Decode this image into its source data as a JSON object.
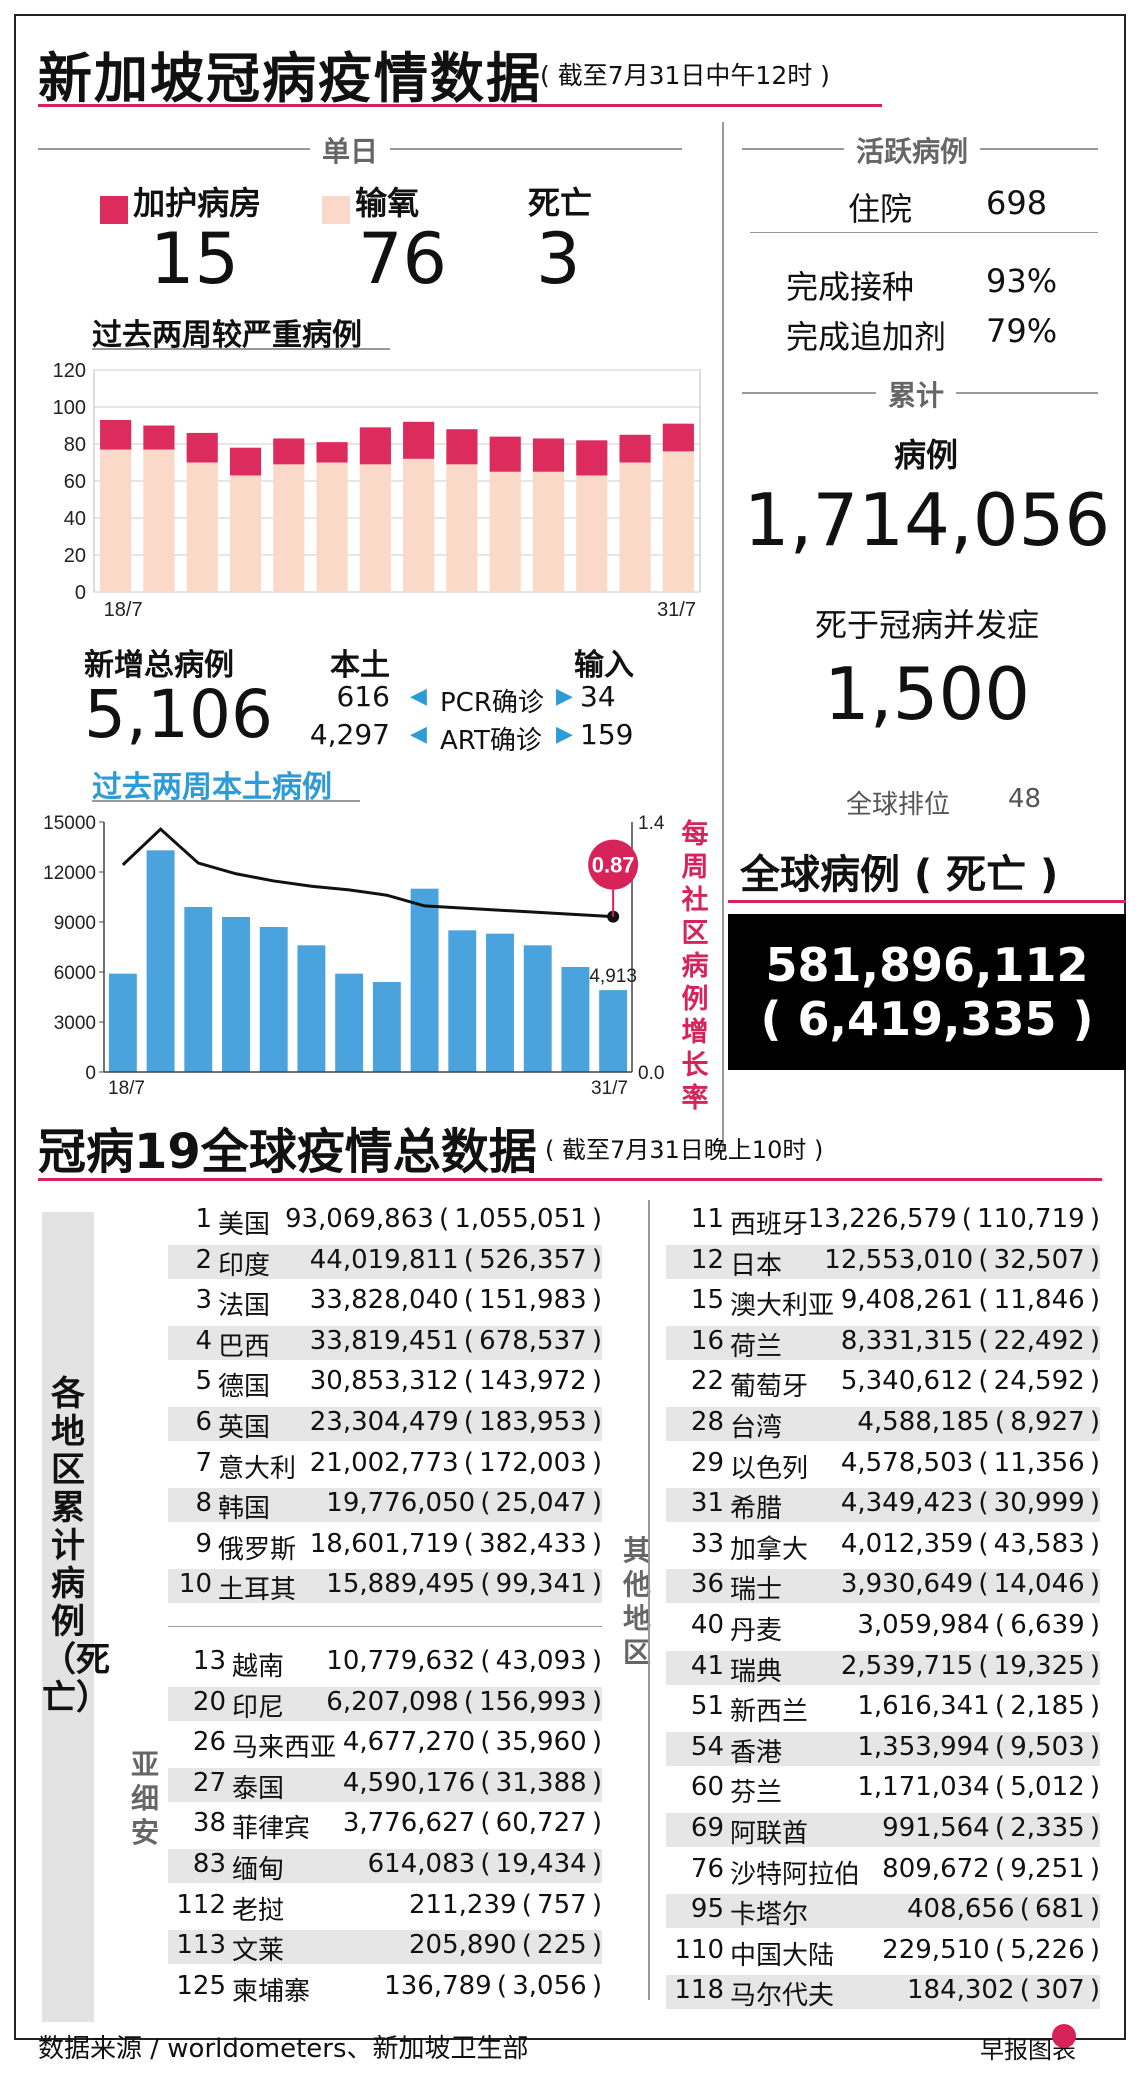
{
  "header": {
    "title": "新加坡冠病疫情数据",
    "subtitle": "( 截至7月31日中午12时 )"
  },
  "daily": {
    "section_label": "单日",
    "icu": {
      "label": "加护病房",
      "value": "15",
      "color": "#dc2c5e"
    },
    "oxygen": {
      "label": "输氧",
      "value": "76",
      "color": "#fbd9c8"
    },
    "deaths": {
      "label": "死亡",
      "value": "3"
    }
  },
  "severe_chart_title": "过去两周较严重病例",
  "new_cases": {
    "label": "新增总病例",
    "value": "5,106",
    "local_label": "本土",
    "imported_label": "输入",
    "pcr_local": "616",
    "pcr_label": "PCR确诊",
    "pcr_imported": "34",
    "art_local": "4,297",
    "art_label": "ART确诊",
    "art_imported": "159"
  },
  "local_chart_title": "过去两周本土病例",
  "right_panel": {
    "active_label": "活跃病例",
    "hospital_label": "住院",
    "hospital_value": "698",
    "vaccinated_label": "完成接种",
    "vaccinated_value": "93%",
    "booster_label": "完成追加剂",
    "booster_value": "79%",
    "cumulative_label": "累计",
    "cases_label": "病例",
    "cases_value": "1,714,056",
    "deaths_label": "死于冠病并发症",
    "deaths_value": "1,500",
    "rank_label": "全球排位",
    "rank_value": "48"
  },
  "global": {
    "label": "全球病例 ( 死亡 )",
    "cases": "581,896,112",
    "deaths": "( 6,419,335 )"
  },
  "section2": {
    "title": "冠病19全球疫情总数据",
    "subtitle": "( 截至7月31日晚上10时 )",
    "side_label": "各地区累计病例（死亡）",
    "asia_label": "亚细安",
    "others_label": "其他地区"
  },
  "top10": [
    {
      "rank": "1",
      "name": "美国",
      "value": "93,069,863",
      "deaths": "1,055,051"
    },
    {
      "rank": "2",
      "name": "印度",
      "value": "44,019,811",
      "deaths": "526,357"
    },
    {
      "rank": "3",
      "name": "法国",
      "value": "33,828,040",
      "deaths": "151,983"
    },
    {
      "rank": "4",
      "name": "巴西",
      "value": "33,819,451",
      "deaths": "678,537"
    },
    {
      "rank": "5",
      "name": "德国",
      "value": "30,853,312",
      "deaths": "143,972"
    },
    {
      "rank": "6",
      "name": "英国",
      "value": "23,304,479",
      "deaths": "183,953"
    },
    {
      "rank": "7",
      "name": "意大利",
      "value": "21,002,773",
      "deaths": "172,003"
    },
    {
      "rank": "8",
      "name": "韩国",
      "value": "19,776,050",
      "deaths": "25,047"
    },
    {
      "rank": "9",
      "name": "俄罗斯",
      "value": "18,601,719",
      "deaths": "382,433"
    },
    {
      "rank": "10",
      "name": "土耳其",
      "value": "15,889,495",
      "deaths": "99,341"
    }
  ],
  "asean": [
    {
      "rank": "13",
      "name": "越南",
      "value": "10,779,632",
      "deaths": "43,093"
    },
    {
      "rank": "20",
      "name": "印尼",
      "value": "6,207,098",
      "deaths": "156,993"
    },
    {
      "rank": "26",
      "name": "马来西亚",
      "value": "4,677,270",
      "deaths": "35,960"
    },
    {
      "rank": "27",
      "name": "泰国",
      "value": "4,590,176",
      "deaths": "31,388"
    },
    {
      "rank": "38",
      "name": "菲律宾",
      "value": "3,776,627",
      "deaths": "60,727"
    },
    {
      "rank": "83",
      "name": "缅甸",
      "value": "614,083",
      "deaths": "19,434"
    },
    {
      "rank": "112",
      "name": "老挝",
      "value": "211,239",
      "deaths": "757"
    },
    {
      "rank": "113",
      "name": "文莱",
      "value": "205,890",
      "deaths": "225"
    },
    {
      "rank": "125",
      "name": "柬埔寨",
      "value": "136,789",
      "deaths": "3,056"
    }
  ],
  "others": [
    {
      "rank": "11",
      "name": "西班牙",
      "value": "13,226,579",
      "deaths": "110,719"
    },
    {
      "rank": "12",
      "name": "日本",
      "value": "12,553,010",
      "deaths": "32,507"
    },
    {
      "rank": "15",
      "name": "澳大利亚",
      "value": "9,408,261",
      "deaths": "11,846"
    },
    {
      "rank": "16",
      "name": "荷兰",
      "value": "8,331,315",
      "deaths": "22,492"
    },
    {
      "rank": "22",
      "name": "葡萄牙",
      "value": "5,340,612",
      "deaths": "24,592"
    },
    {
      "rank": "28",
      "name": "台湾",
      "value": "4,588,185",
      "deaths": "8,927"
    },
    {
      "rank": "29",
      "name": "以色列",
      "value": "4,578,503",
      "deaths": "11,356"
    },
    {
      "rank": "31",
      "name": "希腊",
      "value": "4,349,423",
      "deaths": "30,999"
    },
    {
      "rank": "33",
      "name": "加拿大",
      "value": "4,012,359",
      "deaths": "43,583"
    },
    {
      "rank": "36",
      "name": "瑞士",
      "value": "3,930,649",
      "deaths": "14,046"
    },
    {
      "rank": "40",
      "name": "丹麦",
      "value": "3,059,984",
      "deaths": "6,639"
    },
    {
      "rank": "41",
      "name": "瑞典",
      "value": "2,539,715",
      "deaths": "19,325"
    },
    {
      "rank": "51",
      "name": "新西兰",
      "value": "1,616,341",
      "deaths": "2,185"
    },
    {
      "rank": "54",
      "name": "香港",
      "value": "1,353,994",
      "deaths": "9,503"
    },
    {
      "rank": "60",
      "name": "芬兰",
      "value": "1,171,034",
      "deaths": "5,012"
    },
    {
      "rank": "69",
      "name": "阿联酋",
      "value": "991,564",
      "deaths": "2,335"
    },
    {
      "rank": "76",
      "name": "沙特阿拉伯",
      "value": "809,672",
      "deaths": "9,251"
    },
    {
      "rank": "95",
      "name": "卡塔尔",
      "value": "408,656",
      "deaths": "681"
    },
    {
      "rank": "110",
      "name": "中国大陆",
      "value": "229,510",
      "deaths": "5,226"
    },
    {
      "rank": "118",
      "name": "马尔代夫",
      "value": "184,302",
      "deaths": "307"
    }
  ],
  "footer": {
    "source": "数据来源 / worldometers、新加坡卫生部",
    "credit": "早报图表"
  },
  "chart_data": [
    {
      "type": "bar",
      "title": "过去两周较严重病例",
      "categories": [
        "18/7",
        "19/7",
        "20/7",
        "21/7",
        "22/7",
        "23/7",
        "24/7",
        "25/7",
        "26/7",
        "27/7",
        "28/7",
        "29/7",
        "30/7",
        "31/7"
      ],
      "x_tick_labels": [
        "18/7",
        "31/7"
      ],
      "stacked": true,
      "ylim": [
        0,
        120
      ],
      "yticks": [
        0,
        20,
        40,
        60,
        80,
        100,
        120
      ],
      "series": [
        {
          "name": "输氧",
          "color": "#fbd9c8",
          "values": [
            77,
            77,
            70,
            63,
            69,
            70,
            69,
            72,
            69,
            65,
            65,
            63,
            70,
            76
          ]
        },
        {
          "name": "加护病房",
          "color": "#dc2c5e",
          "values": [
            16,
            13,
            16,
            15,
            14,
            11,
            20,
            20,
            19,
            19,
            18,
            19,
            15,
            15
          ]
        }
      ]
    },
    {
      "type": "bar",
      "title": "过去两周本土病例",
      "categories": [
        "18/7",
        "19/7",
        "20/7",
        "21/7",
        "22/7",
        "23/7",
        "24/7",
        "25/7",
        "26/7",
        "27/7",
        "28/7",
        "29/7",
        "30/7",
        "31/7"
      ],
      "x_tick_labels": [
        "18/7",
        "31/7"
      ],
      "ylim": [
        0,
        15000
      ],
      "yticks": [
        0,
        3000,
        6000,
        9000,
        12000,
        15000
      ],
      "values": [
        5900,
        13300,
        9900,
        9300,
        8700,
        7600,
        5900,
        5400,
        11000,
        8500,
        8300,
        7600,
        6300,
        4913
      ],
      "bar_color": "#4aa3dc",
      "data_labels": {
        "13": "4,913"
      },
      "secondary_axis": {
        "label": "每周社区病例增长率",
        "ylim": [
          0.0,
          1.4
        ],
        "yticks": [
          0.0,
          1.4
        ],
        "line_points": [
          {
            "x": "18/7",
            "y": 1.16
          },
          {
            "x": "19/7",
            "y": 1.36
          },
          {
            "x": "20/7",
            "y": 1.17
          },
          {
            "x": "21/7",
            "y": 1.11
          },
          {
            "x": "22/7",
            "y": 1.07
          },
          {
            "x": "23/7",
            "y": 1.04
          },
          {
            "x": "24/7",
            "y": 1.02
          },
          {
            "x": "25/7",
            "y": 0.99
          },
          {
            "x": "26/7",
            "y": 0.93
          },
          {
            "x": "31/7",
            "y": 0.87
          }
        ],
        "highlight": {
          "x": "31/7",
          "value": "0.87",
          "color": "#d6245a"
        }
      }
    }
  ]
}
